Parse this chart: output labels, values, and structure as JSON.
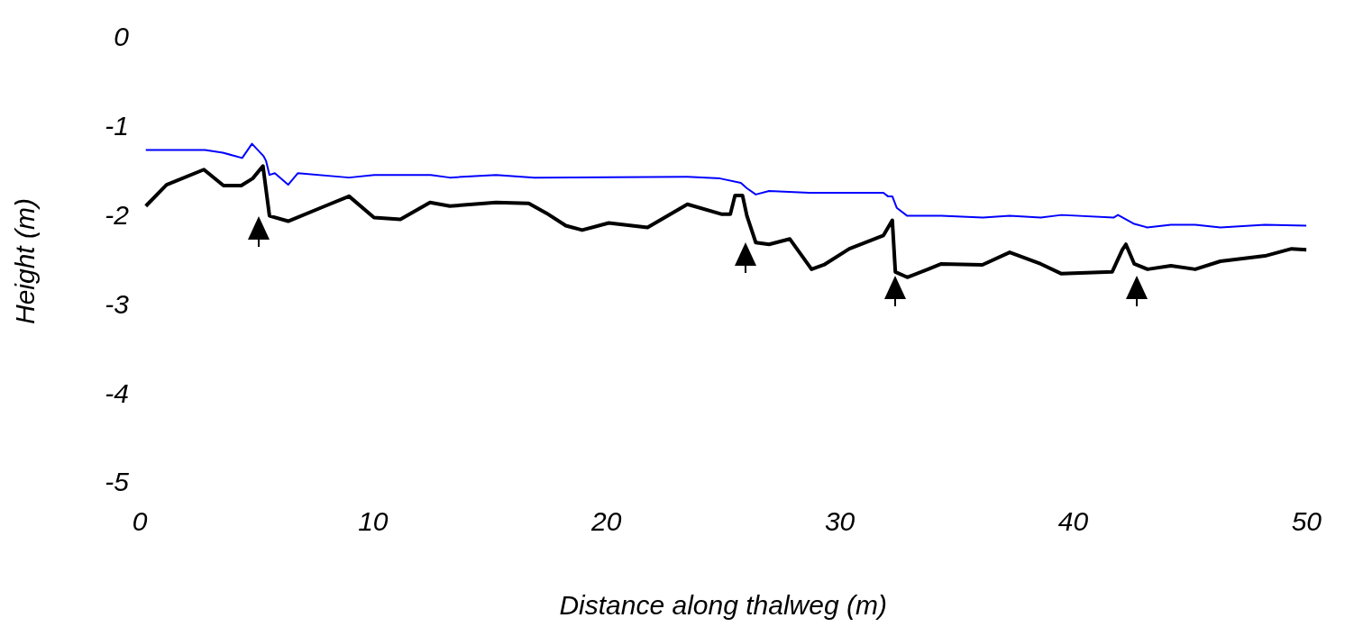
{
  "chart_data": {
    "type": "line",
    "xlabel": "Distance along thalweg (m)",
    "ylabel": "Height (m)",
    "xlim": [
      0,
      50
    ],
    "ylim": [
      -5,
      0
    ],
    "xticks": [
      0,
      10,
      20,
      30,
      40,
      50
    ],
    "yticks": [
      0,
      -1,
      -2,
      -3,
      -4,
      -5
    ],
    "grid": false,
    "series": [
      {
        "color": "#000000",
        "x": [
          0.26,
          1.15,
          2.75,
          3.59,
          4.35,
          4.84,
          5.28,
          5.56,
          6.36,
          7.94,
          8.97,
          10.04,
          11.17,
          12.44,
          13.29,
          15.27,
          16.67,
          17.43,
          18.26,
          18.96,
          20.1,
          21.76,
          23.47,
          24.92,
          25.31,
          25.51,
          25.83,
          26.02,
          26.4,
          26.97,
          27.86,
          28.79,
          29.32,
          30.41,
          31.87,
          32.25,
          32.38,
          32.89,
          33.78,
          34.35,
          36.11,
          37.28,
          38.61,
          39.5,
          41.67,
          42.11,
          42.26,
          42.62,
          43.19,
          44.19,
          45.23,
          46.31,
          48.22,
          49.36,
          50
        ],
        "values": [
          -1.88,
          -1.64,
          -1.47,
          -1.65,
          -1.65,
          -1.57,
          -1.43,
          -1.99,
          -2.05,
          -1.88,
          -1.77,
          -2.01,
          -2.03,
          -1.84,
          -1.88,
          -1.84,
          -1.85,
          -1.96,
          -2.1,
          -2.15,
          -2.07,
          -2.12,
          -1.86,
          -1.97,
          -1.97,
          -1.76,
          -1.76,
          -1.99,
          -2.29,
          -2.31,
          -2.25,
          -2.59,
          -2.54,
          -2.36,
          -2.21,
          -2.04,
          -2.62,
          -2.68,
          -2.59,
          -2.53,
          -2.54,
          -2.4,
          -2.53,
          -2.64,
          -2.62,
          -2.37,
          -2.31,
          -2.53,
          -2.59,
          -2.55,
          -2.59,
          -2.5,
          -2.44,
          -2.36,
          -2.37
        ]
      },
      {
        "color": "#0000ff",
        "x": [
          0.26,
          2.8,
          3.56,
          4.39,
          4.81,
          5.31,
          5.41,
          5.56,
          5.79,
          6.36,
          6.78,
          8.97,
          10.05,
          12.47,
          13.29,
          15.27,
          16.92,
          23.47,
          24.87,
          25.76,
          26.02,
          26.4,
          26.97,
          28.69,
          31.87,
          32.06,
          32.25,
          32.44,
          32.89,
          34.35,
          36.13,
          37.28,
          38.61,
          39.5,
          41.73,
          41.92,
          42.62,
          43.17,
          44.19,
          45.23,
          46.31,
          48.22,
          50
        ],
        "values": [
          -1.25,
          -1.25,
          -1.28,
          -1.34,
          -1.18,
          -1.32,
          -1.37,
          -1.53,
          -1.51,
          -1.64,
          -1.51,
          -1.56,
          -1.53,
          -1.53,
          -1.56,
          -1.53,
          -1.56,
          -1.55,
          -1.57,
          -1.62,
          -1.68,
          -1.75,
          -1.71,
          -1.73,
          -1.73,
          -1.77,
          -1.77,
          -1.9,
          -1.99,
          -1.99,
          -2.01,
          -1.99,
          -2.01,
          -1.98,
          -2.01,
          -1.98,
          -2.08,
          -2.12,
          -2.09,
          -2.09,
          -2.12,
          -2.09,
          -2.1
        ]
      }
    ]
  }
}
